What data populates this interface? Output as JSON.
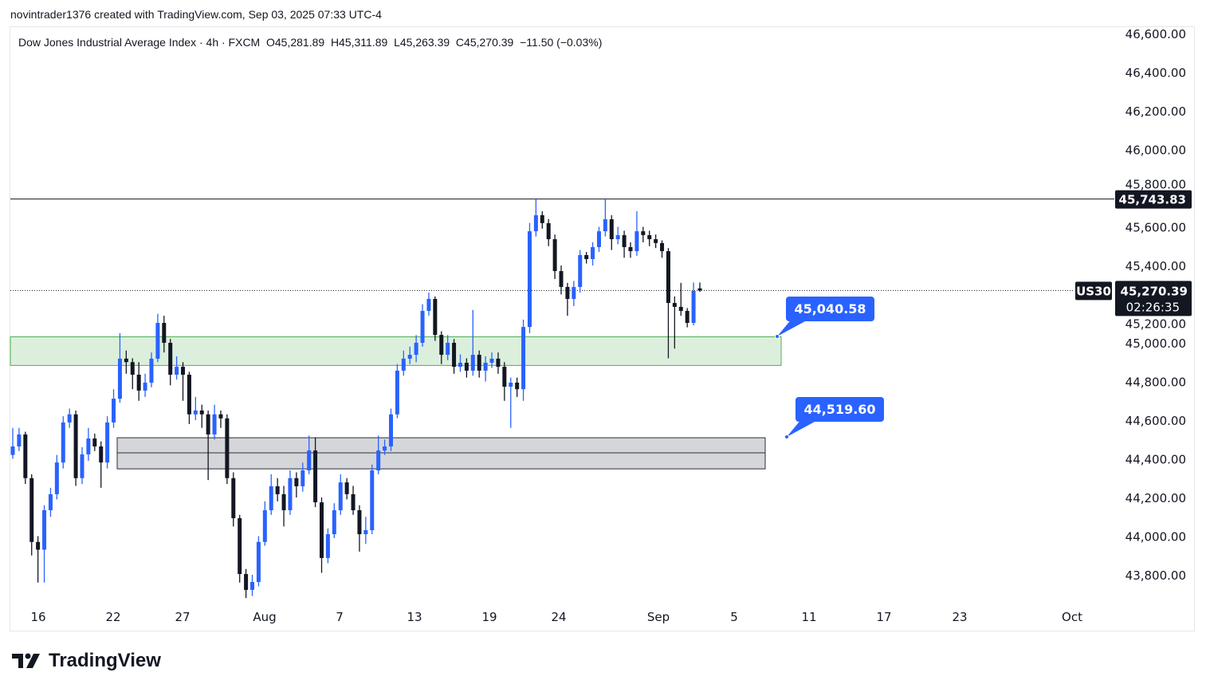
{
  "header": {
    "credit": "novintrader1376 created with TradingView.com, Sep 03, 2025 07:33 UTC-4",
    "legend": "Dow Jones Industrial Average Index · 4h · FXCM  O45,281.89  H45,311.89  L45,263.39  C45,270.39  −11.50 (−0.03%)"
  },
  "footer": {
    "brand": "TradingView"
  },
  "colors": {
    "up": "#2962ff",
    "down": "#131722",
    "zone_green": "#4caf50",
    "zone_green_fill": "#dcefdd",
    "zone_gray_fill": "#d5d6d9",
    "callout": "#2962ff"
  },
  "chart_data": {
    "type": "candlestick",
    "symbol": "US30",
    "title": "Dow Jones Industrial Average Index",
    "interval": "4h",
    "exchange": "FXCM",
    "ylim": [
      43720,
      46640
    ],
    "y_ticks": [
      "46,600.00",
      "46,400.00",
      "46,200.00",
      "46,000.00",
      "45,800.00",
      "45,600.00",
      "45,400.00",
      "45,200.00",
      "45,000.00",
      "44,800.00",
      "44,600.00",
      "44,400.00",
      "44,200.00",
      "44,000.00",
      "43,800.00"
    ],
    "y_tick_values": [
      46600,
      46400,
      46200,
      46000,
      45800,
      45600,
      45400,
      45200,
      45000,
      44800,
      44600,
      44400,
      44200,
      44000,
      43800
    ],
    "x_ticks": [
      "16",
      "22",
      "27",
      "Aug",
      "7",
      "13",
      "19",
      "24",
      "Sep",
      "5",
      "11",
      "17",
      "23",
      "Oct"
    ],
    "ohlc": [
      [
        44420,
        44560,
        44400,
        44464
      ],
      [
        44464,
        44560,
        44440,
        44526
      ],
      [
        44526,
        44540,
        44270,
        44300
      ],
      [
        44300,
        44320,
        43900,
        43970
      ],
      [
        43970,
        44000,
        43760,
        43930
      ],
      [
        43930,
        44160,
        43760,
        44134
      ],
      [
        44134,
        44250,
        44100,
        44217
      ],
      [
        44217,
        44420,
        44190,
        44381
      ],
      [
        44381,
        44620,
        44350,
        44588
      ],
      [
        44588,
        44660,
        44560,
        44630
      ],
      [
        44630,
        44650,
        44260,
        44300
      ],
      [
        44300,
        44460,
        44270,
        44423
      ],
      [
        44423,
        44560,
        44390,
        44505
      ],
      [
        44505,
        44530,
        44440,
        44464
      ],
      [
        44464,
        44490,
        44250,
        44381
      ],
      [
        44381,
        44620,
        44350,
        44588
      ],
      [
        44588,
        44760,
        44560,
        44711
      ],
      [
        44711,
        45050,
        44690,
        44918
      ],
      [
        44918,
        44960,
        44840,
        44900
      ],
      [
        44900,
        44920,
        44760,
        44835
      ],
      [
        44835,
        44900,
        44700,
        44753
      ],
      [
        44753,
        44840,
        44720,
        44794
      ],
      [
        44794,
        44950,
        44770,
        44918
      ],
      [
        44918,
        45150,
        44900,
        45103
      ],
      [
        45103,
        45140,
        44950,
        45000
      ],
      [
        45000,
        45020,
        44780,
        44835
      ],
      [
        44835,
        44930,
        44810,
        44876
      ],
      [
        44876,
        44900,
        44700,
        44835
      ],
      [
        44835,
        44850,
        44580,
        44630
      ],
      [
        44630,
        44720,
        44600,
        44650
      ],
      [
        44650,
        44680,
        44560,
        44630
      ],
      [
        44630,
        44650,
        44290,
        44526
      ],
      [
        44526,
        44680,
        44500,
        44630
      ],
      [
        44630,
        44650,
        44560,
        44609
      ],
      [
        44609,
        44630,
        44270,
        44300
      ],
      [
        44300,
        44330,
        44050,
        44093
      ],
      [
        44093,
        44110,
        43760,
        43804
      ],
      [
        43804,
        43830,
        43680,
        43722
      ],
      [
        43722,
        43800,
        43690,
        43763
      ],
      [
        43763,
        44000,
        43740,
        43970
      ],
      [
        43970,
        44180,
        43950,
        44134
      ],
      [
        44134,
        44320,
        44110,
        44258
      ],
      [
        44258,
        44300,
        44180,
        44217
      ],
      [
        44217,
        44260,
        44050,
        44134
      ],
      [
        44134,
        44340,
        44110,
        44300
      ],
      [
        44300,
        44330,
        44200,
        44258
      ],
      [
        44258,
        44380,
        44230,
        44340
      ],
      [
        44340,
        44520,
        44320,
        44443
      ],
      [
        44443,
        44510,
        44150,
        44175
      ],
      [
        44175,
        44200,
        43810,
        43887
      ],
      [
        43887,
        44040,
        43860,
        44010
      ],
      [
        44010,
        44170,
        43990,
        44134
      ],
      [
        44134,
        44320,
        44110,
        44278
      ],
      [
        44278,
        44300,
        44190,
        44217
      ],
      [
        44217,
        44260,
        44110,
        44134
      ],
      [
        44134,
        44160,
        43920,
        44010
      ],
      [
        44010,
        44100,
        43960,
        44031
      ],
      [
        44031,
        44370,
        44010,
        44340
      ],
      [
        44340,
        44520,
        44320,
        44443
      ],
      [
        44443,
        44500,
        44420,
        44464
      ],
      [
        44464,
        44660,
        44440,
        44630
      ],
      [
        44630,
        44890,
        44610,
        44856
      ],
      [
        44856,
        44960,
        44830,
        44918
      ],
      [
        44918,
        44980,
        44890,
        44938
      ],
      [
        44938,
        45040,
        44900,
        45000
      ],
      [
        45000,
        45200,
        44980,
        45165
      ],
      [
        45165,
        45260,
        45140,
        45227
      ],
      [
        45227,
        45240,
        45010,
        45041
      ],
      [
        45041,
        45060,
        44890,
        44938
      ],
      [
        44938,
        45040,
        44910,
        45000
      ],
      [
        45000,
        45020,
        44840,
        44876
      ],
      [
        44876,
        44940,
        44850,
        44897
      ],
      [
        44897,
        44920,
        44820,
        44856
      ],
      [
        44856,
        45170,
        44830,
        44938
      ],
      [
        44938,
        44960,
        44820,
        44856
      ],
      [
        44856,
        44930,
        44800,
        44897
      ],
      [
        44897,
        44950,
        44870,
        44918
      ],
      [
        44918,
        44950,
        44840,
        44876
      ],
      [
        44876,
        44900,
        44700,
        44773
      ],
      [
        44773,
        44820,
        44560,
        44794
      ],
      [
        44794,
        44820,
        44720,
        44760
      ],
      [
        44760,
        45120,
        44700,
        45082
      ],
      [
        45082,
        45620,
        45050,
        45577
      ],
      [
        45577,
        45743,
        45550,
        45660
      ],
      [
        45660,
        45680,
        45590,
        45619
      ],
      [
        45619,
        45640,
        45500,
        45536
      ],
      [
        45536,
        45560,
        45330,
        45371
      ],
      [
        45371,
        45400,
        45250,
        45289
      ],
      [
        45289,
        45310,
        45140,
        45227
      ],
      [
        45227,
        45320,
        45190,
        45289
      ],
      [
        45289,
        45480,
        45260,
        45454
      ],
      [
        45454,
        45470,
        45410,
        45433
      ],
      [
        45433,
        45520,
        45400,
        45495
      ],
      [
        45495,
        45600,
        45470,
        45577
      ],
      [
        45577,
        45743,
        45550,
        45639
      ],
      [
        45639,
        45660,
        45480,
        45536
      ],
      [
        45536,
        45600,
        45510,
        45557
      ],
      [
        45557,
        45580,
        45440,
        45495
      ],
      [
        45495,
        45520,
        45440,
        45474
      ],
      [
        45474,
        45680,
        45450,
        45577
      ],
      [
        45577,
        45600,
        45520,
        45557
      ],
      [
        45557,
        45580,
        45500,
        45536
      ],
      [
        45536,
        45560,
        45490,
        45516
      ],
      [
        45516,
        45530,
        45440,
        45474
      ],
      [
        45474,
        45490,
        44920,
        45206
      ],
      [
        45206,
        45240,
        44970,
        45186
      ],
      [
        45186,
        45310,
        45140,
        45165
      ],
      [
        45165,
        45180,
        45080,
        45103
      ],
      [
        45103,
        45312,
        45090,
        45268
      ],
      [
        45281.89,
        45311.89,
        45263.39,
        45270.39
      ]
    ],
    "horizontal_line": {
      "price": 45743.83,
      "label": "45,743.83"
    },
    "last_price": {
      "price": 45270.39,
      "label": "45,270.39",
      "countdown": "02:26:35",
      "symbol_label": "US30"
    },
    "zones": [
      {
        "name": "support-zone-green",
        "top": 45031,
        "bottom": 44883
      },
      {
        "name": "support-zone-gray",
        "top": 44509,
        "bottom": 44348,
        "mid": 44431
      }
    ],
    "callouts": [
      {
        "label": "45,040.58",
        "price": 45040.58
      },
      {
        "label": "44,519.60",
        "price": 44519.6
      }
    ]
  }
}
